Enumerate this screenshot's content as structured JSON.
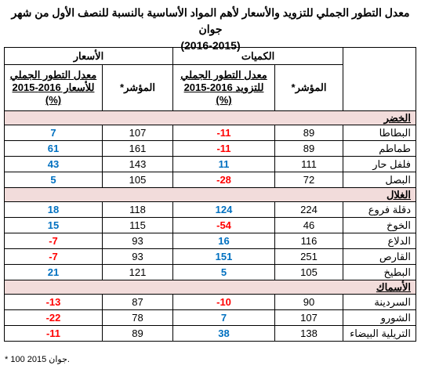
{
  "title": [
    "معدل التطور الجملي للتزويد والأسعار لأهم المواد الأساسية بالنسبة للنصف الأول من شهر جوان",
    "(2016-2015)"
  ],
  "table": {
    "groups": [
      "الكميات",
      "الأسعار"
    ],
    "columns": [
      [
        "المؤشر*"
      ],
      [
        "معدل التطور الجملي",
        "للتزويد 2016-2015",
        "(%)"
      ],
      [
        "المؤشر*"
      ],
      [
        "معدل التطور الجملي",
        "للأسعار 2016-2015",
        "(%)"
      ]
    ],
    "sections": [
      {
        "name": "الخضر",
        "rows": [
          {
            "product": "البطاطا",
            "values": [
              89,
              -11,
              107,
              7
            ]
          },
          {
            "product": "طماطم",
            "values": [
              89,
              -11,
              161,
              61
            ]
          },
          {
            "product": "فلفل حار",
            "values": [
              111,
              11,
              143,
              43
            ]
          },
          {
            "product": "البصل",
            "values": [
              72,
              -28,
              105,
              5
            ]
          }
        ]
      },
      {
        "name": "الغلال",
        "rows": [
          {
            "product": "دقلة فروع",
            "values": [
              224,
              124,
              118,
              18
            ]
          },
          {
            "product": "الخوخ",
            "values": [
              46,
              -54,
              115,
              15
            ]
          },
          {
            "product": "الدلاع",
            "values": [
              116,
              16,
              93,
              -7
            ]
          },
          {
            "product": "القارص",
            "values": [
              251,
              151,
              93,
              -7
            ]
          },
          {
            "product": "البطيخ",
            "values": [
              105,
              5,
              121,
              21
            ]
          }
        ]
      },
      {
        "name": "الأسماك",
        "rows": [
          {
            "product": "السردينة",
            "values": [
              90,
              -10,
              87,
              -13
            ]
          },
          {
            "product": "الشورو",
            "values": [
              107,
              7,
              78,
              -22
            ]
          },
          {
            "product": "التريلية البيضاء",
            "values": [
              138,
              38,
              89,
              -11
            ]
          }
        ]
      }
    ]
  },
  "footnote": "* 100 جوان 2015."
}
